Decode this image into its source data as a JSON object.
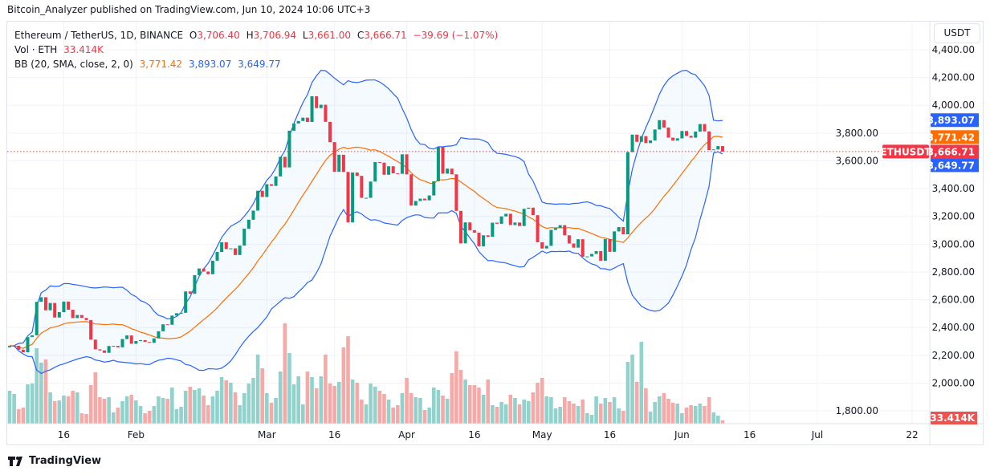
{
  "publish_line": "Bitcoin_Analyzer published on TradingView.com, Jun 10, 2024 10:06 UTC+3",
  "legend": {
    "symbol": "Ethereum / TetherUS, 1D, BINANCE",
    "o_label": "O",
    "o": "3,706.40",
    "h_label": "H",
    "h": "3,706.94",
    "l_label": "L",
    "l": "3,661.00",
    "c_label": "C",
    "c": "3,666.71",
    "change": "−39.69 (−1.07%)",
    "vol_label": "Vol · ETH",
    "vol": "33.414K",
    "bb_label": "BB (20, SMA, close, 2, 0)",
    "bb_basis": "3,771.42",
    "bb_upper": "3,893.07",
    "bb_lower": "3,649.77"
  },
  "currency": "USDT",
  "ticker_tag": "ETHUSDT",
  "branding": "TradingView",
  "colors": {
    "up": "#089981",
    "down": "#f23645",
    "vol_up": "#92d2cc",
    "vol_down": "#f7a9a7",
    "bb_band": "#2962ff",
    "bb_basis": "#ff6d00",
    "bb_fill": "rgba(33,150,243,0.05)",
    "grid": "#f0f3fa"
  },
  "chart_data": {
    "type": "candlestick",
    "interval": "1D",
    "start_date": "2024-01-04",
    "last_open": 3706.4,
    "close": [
      2268,
      2269,
      2240,
      2222,
      2331,
      2344,
      2585,
      2618,
      2524,
      2577,
      2472,
      2511,
      2587,
      2528,
      2468,
      2490,
      2469,
      2454,
      2313,
      2243,
      2235,
      2218,
      2267,
      2268,
      2258,
      2317,
      2343,
      2283,
      2303,
      2309,
      2296,
      2290,
      2322,
      2373,
      2423,
      2420,
      2486,
      2503,
      2506,
      2660,
      2643,
      2777,
      2825,
      2803,
      2784,
      2881,
      2944,
      3014,
      2965,
      2970,
      2922,
      2990,
      3112,
      3176,
      3242,
      3385,
      3340,
      3432,
      3420,
      3488,
      3629,
      3553,
      3817,
      3869,
      3887,
      3911,
      3880,
      4065,
      3980,
      4004,
      3881,
      3735,
      3521,
      3644,
      3520,
      3157,
      3516,
      3492,
      3334,
      3334,
      3451,
      3591,
      3587,
      3500,
      3561,
      3510,
      3507,
      3647,
      3503,
      3278,
      3311,
      3328,
      3316,
      3351,
      3453,
      3698,
      3508,
      3544,
      3503,
      3240,
      3006,
      3157,
      3101,
      3083,
      2985,
      3064,
      3053,
      3155,
      3147,
      3200,
      3219,
      3138,
      3156,
      3131,
      3255,
      3263,
      3209,
      3014,
      2969,
      2988,
      3103,
      3116,
      3137,
      3064,
      3005,
      2975,
      3036,
      2910,
      2912,
      2930,
      2950,
      2881,
      3037,
      2945,
      3092,
      3123,
      3071,
      3663,
      3789,
      3737,
      3778,
      3728,
      3747,
      3826,
      3893,
      3840,
      3767,
      3746,
      3762,
      3815,
      3780,
      3767,
      3811,
      3865,
      3812,
      3678,
      3682,
      3706.4,
      3666.71
    ],
    "volume_k": [
      328,
      296,
      144,
      160,
      392,
      400,
      752,
      608,
      640,
      312,
      224,
      232,
      280,
      272,
      328,
      312,
      104,
      96,
      384,
      512,
      264,
      248,
      264,
      112,
      160,
      224,
      272,
      288,
      232,
      176,
      104,
      128,
      176,
      272,
      256,
      248,
      360,
      144,
      168,
      328,
      368,
      336,
      352,
      280,
      184,
      272,
      328,
      464,
      432,
      408,
      312,
      184,
      304,
      400,
      456,
      688,
      552,
      304,
      208,
      256,
      520,
      1000,
      704,
      392,
      472,
      192,
      520,
      464,
      352,
      472,
      688,
      400,
      376,
      416,
      760,
      872,
      440,
      408,
      240,
      192,
      400,
      368,
      328,
      296,
      240,
      160,
      184,
      304,
      456,
      304,
      264,
      256,
      136,
      160,
      360,
      336,
      280,
      248,
      504,
      720,
      536,
      440,
      384,
      384,
      360,
      288,
      440,
      184,
      168,
      216,
      192,
      288,
      256,
      192,
      240,
      224,
      312,
      408,
      456,
      272,
      264,
      152,
      168,
      264,
      224,
      200,
      176,
      240,
      104,
      88,
      272,
      200,
      256,
      216,
      264,
      152,
      128,
      616,
      688,
      416,
      816,
      352,
      120,
      216,
      272,
      304,
      248,
      208,
      200,
      104,
      160,
      184,
      176,
      200,
      176,
      264,
      112,
      80,
      33.414
    ],
    "bollinger": {
      "length": 20,
      "ma": "SMA",
      "source": "close",
      "mult": 2,
      "offset": 0,
      "basis": 3771.42,
      "upper": 3893.07,
      "lower": 3649.77
    },
    "y_ticks": [
      "4,400.00",
      "4,200.00",
      "4,000.00",
      "3,800.00",
      "3,600.00",
      "3,400.00",
      "3,200.00",
      "3,000.00",
      "2,800.00",
      "2,600.00",
      "2,400.00",
      "2,200.00",
      "2,000.00",
      "1,800.00"
    ],
    "x_ticks": [
      {
        "label": "16",
        "date": "2024-01-16"
      },
      {
        "label": "Feb",
        "date": "2024-02-01"
      },
      {
        "label": "Mar",
        "date": "2024-03-01"
      },
      {
        "label": "16",
        "date": "2024-03-16"
      },
      {
        "label": "Apr",
        "date": "2024-04-01"
      },
      {
        "label": "16",
        "date": "2024-04-16"
      },
      {
        "label": "May",
        "date": "2024-05-01"
      },
      {
        "label": "16",
        "date": "2024-05-16"
      },
      {
        "label": "Jun",
        "date": "2024-06-01"
      },
      {
        "label": "16",
        "date": "2024-06-16"
      },
      {
        "label": "Jul",
        "date": "2024-07-01"
      },
      {
        "label": "22",
        "date": "2024-07-22"
      }
    ],
    "last_price": 3666.71,
    "last_volume_label": "33.414K",
    "badges": [
      {
        "text": "3,893.07",
        "value": 3893.07,
        "color": "#2962ff"
      },
      {
        "text": "3,771.42",
        "value": 3771.42,
        "color": "#ff6d00"
      },
      {
        "text": "3,666.71",
        "value": 3666.71,
        "color": "#f23645"
      },
      {
        "text": "3,649.77",
        "value": 3649.77,
        "color": "#2962ff"
      }
    ]
  }
}
